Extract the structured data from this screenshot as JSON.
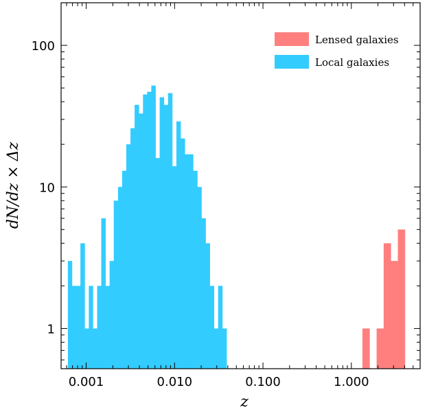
{
  "chart_data": {
    "type": "bar",
    "title": "",
    "xlabel": "z",
    "ylabel": "dN/dz × Δz",
    "x_scale": "log",
    "y_scale": "log",
    "xlim": [
      0.00052,
      6.0
    ],
    "ylim": [
      0.52,
      200
    ],
    "grid": false,
    "legend_position": "top-right",
    "x_tick_labels": [
      {
        "value": 0.001,
        "label": "0.001"
      },
      {
        "value": 0.01,
        "label": "0.010"
      },
      {
        "value": 0.1,
        "label": "0.100"
      },
      {
        "value": 1,
        "label": "1.000"
      }
    ],
    "y_tick_labels": [
      {
        "value": 1,
        "label": "1"
      },
      {
        "value": 10,
        "label": "10"
      },
      {
        "value": 100,
        "label": "100"
      }
    ],
    "series": [
      {
        "name": "Local galaxies",
        "color": "#33ccff",
        "bin_edges": [
          0.00062,
          0.00069,
          0.00077,
          0.00086,
          0.00096,
          0.00107,
          0.00119,
          0.00133,
          0.00148,
          0.00165,
          0.00184,
          0.00205,
          0.00229,
          0.00255,
          0.00284,
          0.00317,
          0.00353,
          0.00394,
          0.00439,
          0.00489,
          0.00545,
          0.00608,
          0.00678,
          0.00756,
          0.00843,
          0.0094,
          0.01048,
          0.01168,
          0.01302,
          0.01452,
          0.01619,
          0.01805,
          0.02012,
          0.02243,
          0.02501,
          0.02788,
          0.03108,
          0.03465,
          0.0387
        ],
        "counts": [
          3,
          2,
          2,
          4,
          1,
          2,
          1,
          2,
          6,
          2,
          3,
          8,
          10,
          13,
          20,
          26,
          38,
          33,
          45,
          47,
          52,
          16,
          43,
          38,
          46,
          14,
          29,
          22,
          17,
          17,
          13,
          10,
          6,
          4,
          2,
          1,
          2,
          1
        ]
      },
      {
        "name": "Lensed galaxies",
        "color": "#ff7f7f",
        "bin_edges": [
          1.335,
          1.605,
          1.93,
          2.321,
          2.791,
          3.356,
          4.036
        ],
        "counts": [
          1,
          0,
          1,
          4,
          3,
          5
        ]
      }
    ]
  }
}
